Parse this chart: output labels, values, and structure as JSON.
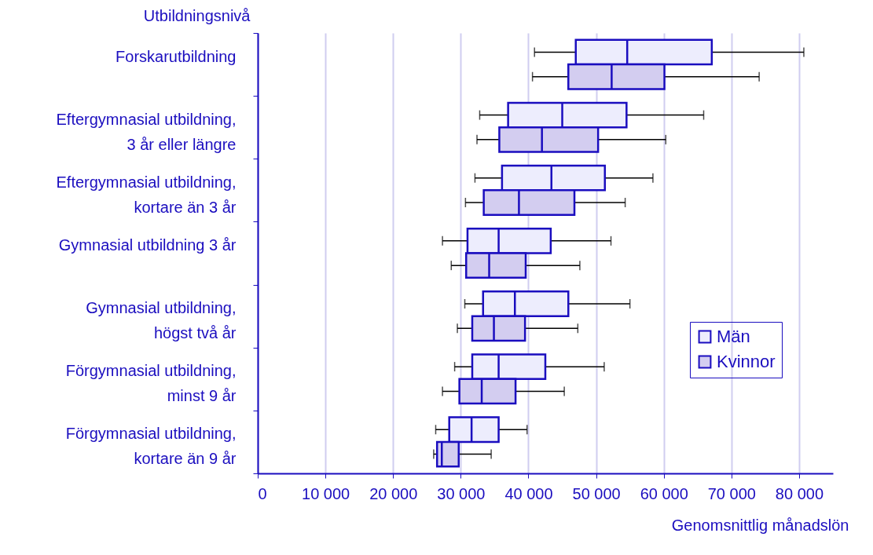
{
  "chart_data": {
    "type": "box",
    "orientation": "horizontal",
    "ylabel": "Utbildningsnivå",
    "xlabel": "Genomsnittlig månadslön",
    "categories": [
      "Forskarutbildning",
      "Eftergymnasial utbildning, 3 år eller längre",
      "Eftergymnasial utbildning, kortare än 3 år",
      "Gymnasial utbildning 3 år",
      "Gymnasial utbildning, högst två år",
      "Förgymnasial utbildning, minst 9 år",
      "Förgymnasial utbildning, kortare än 9 år"
    ],
    "xlim": [
      0,
      85000
    ],
    "xticks": [
      {
        "value": 0,
        "label": "0"
      },
      {
        "value": 10000,
        "label": "10 000"
      },
      {
        "value": 20000,
        "label": "20 000"
      },
      {
        "value": 30000,
        "label": "30 000"
      },
      {
        "value": 40000,
        "label": "40 000"
      },
      {
        "value": 50000,
        "label": "50 000"
      },
      {
        "value": 60000,
        "label": "60 000"
      },
      {
        "value": 70000,
        "label": "70 000"
      },
      {
        "value": 80000,
        "label": "80 000"
      }
    ],
    "grid": "x",
    "legend": "right",
    "series": [
      {
        "name": "Män",
        "color": "#ededfd",
        "boxes": [
          {
            "low": 40900,
            "q1": 47000,
            "median": 54600,
            "q3": 67100,
            "high": 80700
          },
          {
            "low": 32800,
            "q1": 37000,
            "median": 45000,
            "q3": 54500,
            "high": 65900
          },
          {
            "low": 32100,
            "q1": 36100,
            "median": 43400,
            "q3": 51300,
            "high": 58400
          },
          {
            "low": 27300,
            "q1": 31000,
            "median": 35600,
            "q3": 43300,
            "high": 52200
          },
          {
            "low": 30600,
            "q1": 33300,
            "median": 38000,
            "q3": 45900,
            "high": 55000
          },
          {
            "low": 29100,
            "q1": 31700,
            "median": 35600,
            "q3": 42500,
            "high": 51200
          },
          {
            "low": 26300,
            "q1": 28300,
            "median": 31600,
            "q3": 35600,
            "high": 39800
          }
        ]
      },
      {
        "name": "Kvinnor",
        "color": "#d3cdf0",
        "boxes": [
          {
            "low": 40600,
            "q1": 45900,
            "median": 52300,
            "q3": 60100,
            "high": 74100
          },
          {
            "low": 32400,
            "q1": 35700,
            "median": 42000,
            "q3": 50300,
            "high": 60300
          },
          {
            "low": 30700,
            "q1": 33400,
            "median": 38600,
            "q3": 46800,
            "high": 54300
          },
          {
            "low": 28600,
            "q1": 30800,
            "median": 34200,
            "q3": 39600,
            "high": 47600
          },
          {
            "low": 29500,
            "q1": 31700,
            "median": 34900,
            "q3": 39500,
            "high": 47300
          },
          {
            "low": 27300,
            "q1": 29800,
            "median": 33100,
            "q3": 38100,
            "high": 45300
          },
          {
            "low": 26000,
            "q1": 26500,
            "median": 27200,
            "q3": 29700,
            "high": 34500
          }
        ]
      }
    ]
  }
}
